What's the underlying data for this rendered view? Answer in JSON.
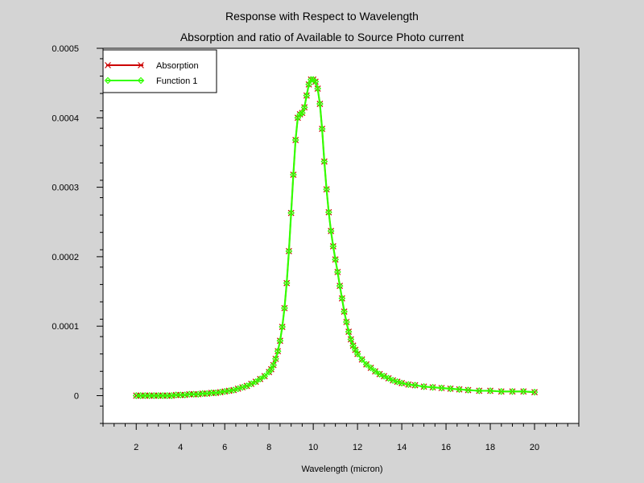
{
  "chart_data": {
    "type": "line",
    "title": "Response with Respect to Wavelength",
    "subtitle": "Absorption and ratio of Available to Source Photo current",
    "xlabel": "Wavelength (micron)",
    "ylabel": "",
    "xlim": [
      0.5,
      22
    ],
    "ylim": [
      -4e-05,
      0.0005
    ],
    "xticks": [
      2,
      4,
      6,
      8,
      10,
      12,
      14,
      16,
      18,
      20
    ],
    "xtick_labels": [
      "2",
      "4",
      "6",
      "8",
      "10",
      "12",
      "14",
      "16",
      "18",
      "20"
    ],
    "yticks": [
      0,
      0.0001,
      0.0002,
      0.0003,
      0.0004,
      0.0005
    ],
    "ytick_labels": [
      "0",
      "0.0001",
      "0.0002",
      "0.0003",
      "0.0004",
      "0.0005"
    ],
    "grid": false,
    "legend_position": "top-left",
    "series": [
      {
        "name": "Absorption",
        "color": "#cc0000",
        "marker": "x",
        "x": [
          2.0,
          2.2,
          2.4,
          2.6,
          2.8,
          3.0,
          3.2,
          3.4,
          3.6,
          3.8,
          4.0,
          4.2,
          4.4,
          4.6,
          4.8,
          5.0,
          5.2,
          5.4,
          5.6,
          5.8,
          6.0,
          6.2,
          6.4,
          6.6,
          6.8,
          7.0,
          7.2,
          7.4,
          7.6,
          7.8,
          8.0,
          8.1,
          8.2,
          8.3,
          8.4,
          8.5,
          8.6,
          8.7,
          8.8,
          8.9,
          9.0,
          9.1,
          9.2,
          9.3,
          9.4,
          9.5,
          9.6,
          9.7,
          9.8,
          9.9,
          10.0,
          10.1,
          10.2,
          10.3,
          10.4,
          10.5,
          10.6,
          10.7,
          10.8,
          10.9,
          11.0,
          11.1,
          11.2,
          11.3,
          11.4,
          11.5,
          11.6,
          11.7,
          11.8,
          11.9,
          12.0,
          12.2,
          12.4,
          12.6,
          12.8,
          13.0,
          13.2,
          13.4,
          13.6,
          13.8,
          14.0,
          14.3,
          14.6,
          15.0,
          15.4,
          15.8,
          16.2,
          16.6,
          17.0,
          17.5,
          18.0,
          18.5,
          19.0,
          19.5,
          20.0
        ],
        "y": [
          0.0,
          0.0,
          0.0,
          0.0,
          0.0,
          0.0,
          0.0,
          0.0,
          0.0,
          1e-06,
          1e-06,
          1e-06,
          2e-06,
          2e-06,
          2e-06,
          3e-06,
          3e-06,
          4e-06,
          4e-06,
          5e-06,
          6e-06,
          7e-06,
          8e-06,
          1e-05,
          1.2e-05,
          1.4e-05,
          1.7e-05,
          2e-05,
          2.4e-05,
          2.8e-05,
          3.4e-05,
          3.8e-05,
          4.4e-05,
          5.3e-05,
          6.4e-05,
          7.9e-05,
          9.9e-05,
          0.000126,
          0.000162,
          0.000208,
          0.000263,
          0.000318,
          0.000368,
          0.0004,
          0.000405,
          0.000407,
          0.000415,
          0.000432,
          0.000448,
          0.000455,
          0.000455,
          0.000452,
          0.000442,
          0.00042,
          0.000384,
          0.000337,
          0.000297,
          0.000264,
          0.000237,
          0.000215,
          0.000196,
          0.000178,
          0.000158,
          0.00014,
          0.000121,
          0.000106,
          9.2e-05,
          8.1e-05,
          7.2e-05,
          6.6e-05,
          6e-05,
          5.2e-05,
          4.5e-05,
          4e-05,
          3.5e-05,
          3.1e-05,
          2.8e-05,
          2.5e-05,
          2.2e-05,
          2e-05,
          1.8e-05,
          1.6e-05,
          1.5e-05,
          1.3e-05,
          1.2e-05,
          1.1e-05,
          1e-05,
          9e-06,
          8e-06,
          7e-06,
          7e-06,
          6e-06,
          6e-06,
          6e-06,
          5e-06
        ]
      },
      {
        "name": "Function 1",
        "color": "#33ff00",
        "marker": "diamond",
        "x": [
          2.0,
          2.2,
          2.4,
          2.6,
          2.8,
          3.0,
          3.2,
          3.4,
          3.6,
          3.8,
          4.0,
          4.2,
          4.4,
          4.6,
          4.8,
          5.0,
          5.2,
          5.4,
          5.6,
          5.8,
          6.0,
          6.2,
          6.4,
          6.6,
          6.8,
          7.0,
          7.2,
          7.4,
          7.6,
          7.8,
          8.0,
          8.1,
          8.2,
          8.3,
          8.4,
          8.5,
          8.6,
          8.7,
          8.8,
          8.9,
          9.0,
          9.1,
          9.2,
          9.3,
          9.4,
          9.5,
          9.6,
          9.7,
          9.8,
          9.9,
          10.0,
          10.1,
          10.2,
          10.3,
          10.4,
          10.5,
          10.6,
          10.7,
          10.8,
          10.9,
          11.0,
          11.1,
          11.2,
          11.3,
          11.4,
          11.5,
          11.6,
          11.7,
          11.8,
          11.9,
          12.0,
          12.2,
          12.4,
          12.6,
          12.8,
          13.0,
          13.2,
          13.4,
          13.6,
          13.8,
          14.0,
          14.3,
          14.6,
          15.0,
          15.4,
          15.8,
          16.2,
          16.6,
          17.0,
          17.5,
          18.0,
          18.5,
          19.0,
          19.5,
          20.0
        ],
        "y": [
          0.0,
          0.0,
          0.0,
          0.0,
          0.0,
          0.0,
          0.0,
          0.0,
          0.0,
          1e-06,
          1e-06,
          1e-06,
          2e-06,
          2e-06,
          2e-06,
          3e-06,
          3e-06,
          4e-06,
          4e-06,
          5e-06,
          6e-06,
          7e-06,
          8e-06,
          1e-05,
          1.2e-05,
          1.4e-05,
          1.7e-05,
          2e-05,
          2.4e-05,
          2.8e-05,
          3.4e-05,
          3.8e-05,
          4.4e-05,
          5.3e-05,
          6.4e-05,
          7.9e-05,
          9.9e-05,
          0.000126,
          0.000162,
          0.000208,
          0.000263,
          0.000318,
          0.000368,
          0.0004,
          0.000405,
          0.000407,
          0.000415,
          0.000432,
          0.000448,
          0.000455,
          0.000455,
          0.000452,
          0.000442,
          0.00042,
          0.000384,
          0.000337,
          0.000297,
          0.000264,
          0.000237,
          0.000215,
          0.000196,
          0.000178,
          0.000158,
          0.00014,
          0.000121,
          0.000106,
          9.2e-05,
          8.1e-05,
          7.2e-05,
          6.6e-05,
          6e-05,
          5.2e-05,
          4.5e-05,
          4e-05,
          3.5e-05,
          3.1e-05,
          2.8e-05,
          2.5e-05,
          2.2e-05,
          2e-05,
          1.8e-05,
          1.6e-05,
          1.5e-05,
          1.3e-05,
          1.2e-05,
          1.1e-05,
          1e-05,
          9e-06,
          8e-06,
          7e-06,
          7e-06,
          6e-06,
          6e-06,
          6e-06,
          5e-06
        ]
      }
    ]
  }
}
